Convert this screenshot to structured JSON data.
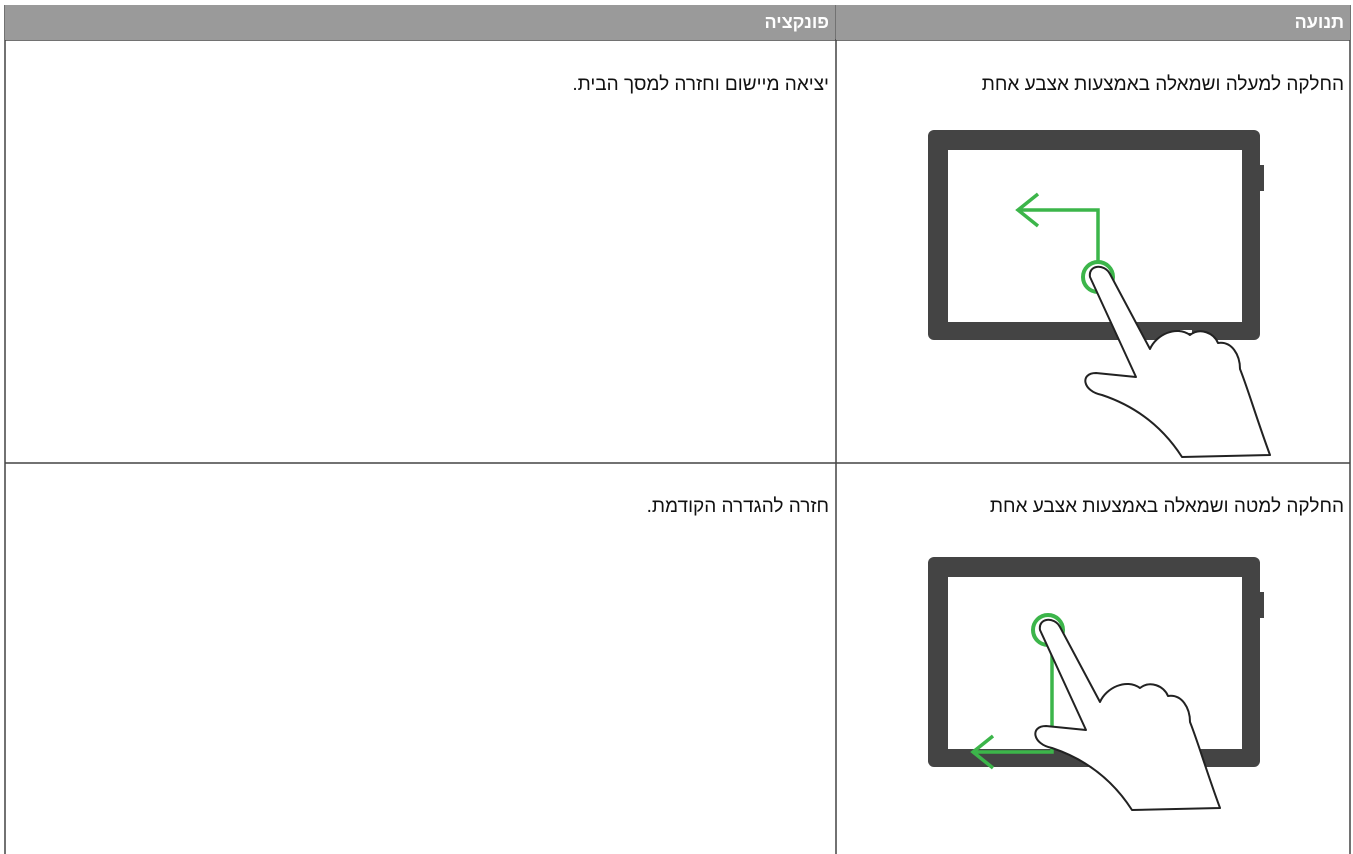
{
  "table": {
    "headers": [
      "תנועה",
      "פונקציה"
    ],
    "rows": [
      [
        "החלקה למעלה ושמאלה באמצעות אצבע אחת",
        "יציאה מיישום וחזרה למסך הבית."
      ],
      [
        "החלקה למטה ושמאלה באמצעות אצבע אחת",
        "חזרה להגדרה הקודמת."
      ]
    ]
  }
}
